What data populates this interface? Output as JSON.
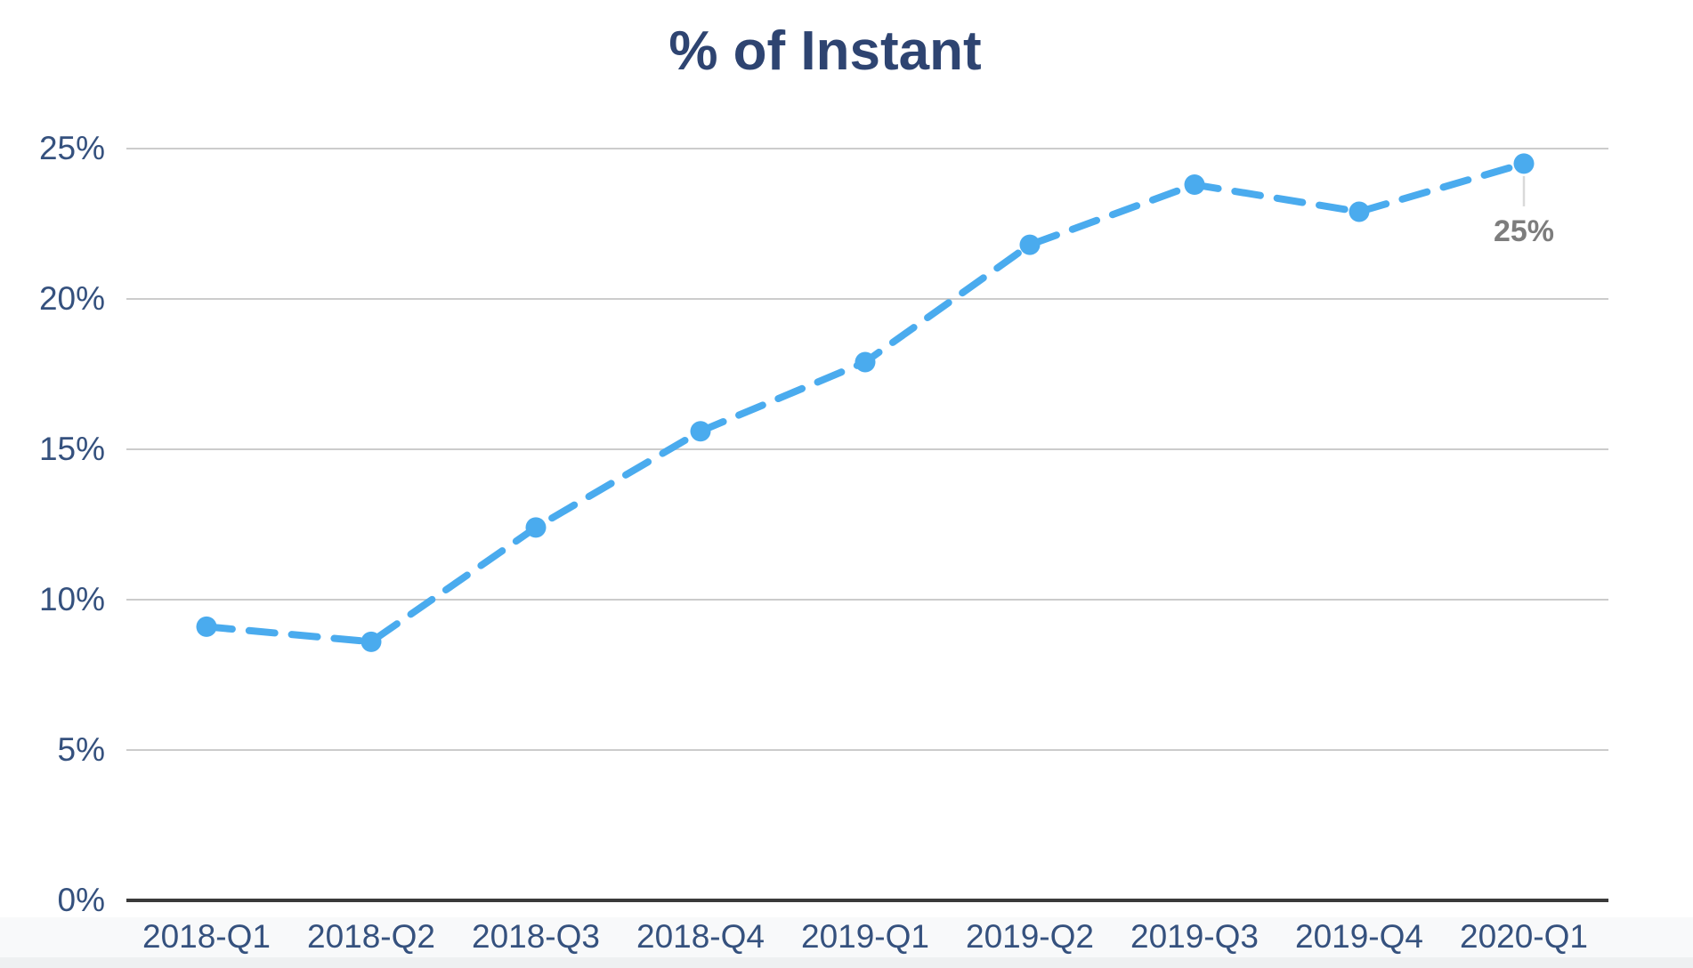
{
  "chart_data": {
    "type": "line",
    "title": "% of Instant",
    "categories": [
      "2018-Q1",
      "2018-Q2",
      "2018-Q3",
      "2018-Q4",
      "2019-Q1",
      "2019-Q2",
      "2019-Q3",
      "2019-Q4",
      "2020-Q1"
    ],
    "series": [
      {
        "name": "% of Instant",
        "values": [
          9.1,
          8.6,
          12.4,
          15.6,
          17.9,
          21.8,
          23.8,
          22.9,
          24.5
        ]
      }
    ],
    "xlabel": "",
    "ylabel": "",
    "ylim": [
      0,
      25
    ],
    "ytick_step": 5,
    "ytick_labels": [
      "0%",
      "5%",
      "10%",
      "15%",
      "20%",
      "25%"
    ],
    "grid": true,
    "line_style": "dashed",
    "marker_style": "circle",
    "annotation": {
      "text": "25%",
      "point_index": 8
    },
    "colors": {
      "line": "#4aabee",
      "marker": "#4aabee",
      "title": "#2e4471",
      "tick": "#35517e",
      "grid": "#cccccc",
      "axis": "#3a3a3a",
      "annotation_text": "#7d7d7d",
      "annotation_connector": "#d9d9d9"
    }
  }
}
